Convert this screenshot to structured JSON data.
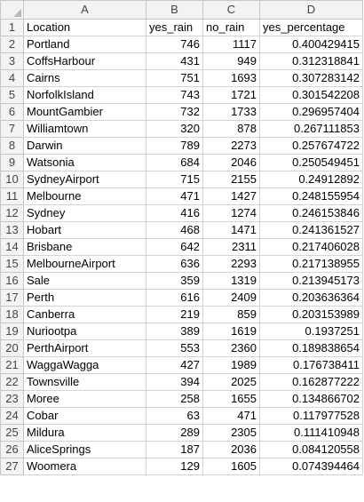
{
  "columns": [
    "A",
    "B",
    "C",
    "D"
  ],
  "header_row": {
    "num": "1",
    "cells": [
      "Location",
      "yes_rain",
      "no_rain",
      "yes_percentage"
    ]
  },
  "rows": [
    {
      "num": "2",
      "cells": [
        "Portland",
        "746",
        "1117",
        "0.400429415"
      ]
    },
    {
      "num": "3",
      "cells": [
        "CoffsHarbour",
        "431",
        "949",
        "0.312318841"
      ]
    },
    {
      "num": "4",
      "cells": [
        "Cairns",
        "751",
        "1693",
        "0.307283142"
      ]
    },
    {
      "num": "5",
      "cells": [
        "NorfolkIsland",
        "743",
        "1721",
        "0.301542208"
      ]
    },
    {
      "num": "6",
      "cells": [
        "MountGambier",
        "732",
        "1733",
        "0.296957404"
      ]
    },
    {
      "num": "7",
      "cells": [
        "Williamtown",
        "320",
        "878",
        "0.267111853"
      ]
    },
    {
      "num": "8",
      "cells": [
        "Darwin",
        "789",
        "2273",
        "0.257674722"
      ]
    },
    {
      "num": "9",
      "cells": [
        "Watsonia",
        "684",
        "2046",
        "0.250549451"
      ]
    },
    {
      "num": "10",
      "cells": [
        "SydneyAirport",
        "715",
        "2155",
        "0.24912892"
      ]
    },
    {
      "num": "11",
      "cells": [
        "Melbourne",
        "471",
        "1427",
        "0.248155954"
      ]
    },
    {
      "num": "12",
      "cells": [
        "Sydney",
        "416",
        "1274",
        "0.246153846"
      ]
    },
    {
      "num": "13",
      "cells": [
        "Hobart",
        "468",
        "1471",
        "0.241361527"
      ]
    },
    {
      "num": "14",
      "cells": [
        "Brisbane",
        "642",
        "2311",
        "0.217406028"
      ]
    },
    {
      "num": "15",
      "cells": [
        "MelbourneAirport",
        "636",
        "2293",
        "0.217138955"
      ]
    },
    {
      "num": "16",
      "cells": [
        "Sale",
        "359",
        "1319",
        "0.213945173"
      ]
    },
    {
      "num": "17",
      "cells": [
        "Perth",
        "616",
        "2409",
        "0.203636364"
      ]
    },
    {
      "num": "18",
      "cells": [
        "Canberra",
        "219",
        "859",
        "0.203153989"
      ]
    },
    {
      "num": "19",
      "cells": [
        "Nuriootpa",
        "389",
        "1619",
        "0.1937251"
      ]
    },
    {
      "num": "20",
      "cells": [
        "PerthAirport",
        "553",
        "2360",
        "0.189838654"
      ]
    },
    {
      "num": "21",
      "cells": [
        "WaggaWagga",
        "427",
        "1989",
        "0.176738411"
      ]
    },
    {
      "num": "22",
      "cells": [
        "Townsville",
        "394",
        "2025",
        "0.162877222"
      ]
    },
    {
      "num": "23",
      "cells": [
        "Moree",
        "258",
        "1655",
        "0.134866702"
      ]
    },
    {
      "num": "24",
      "cells": [
        "Cobar",
        "63",
        "471",
        "0.117977528"
      ]
    },
    {
      "num": "25",
      "cells": [
        "Mildura",
        "289",
        "2305",
        "0.111410948"
      ]
    },
    {
      "num": "26",
      "cells": [
        "AliceSprings",
        "187",
        "2036",
        "0.084120558"
      ]
    },
    {
      "num": "27",
      "cells": [
        "Woomera",
        "129",
        "1605",
        "0.074394464"
      ]
    }
  ]
}
